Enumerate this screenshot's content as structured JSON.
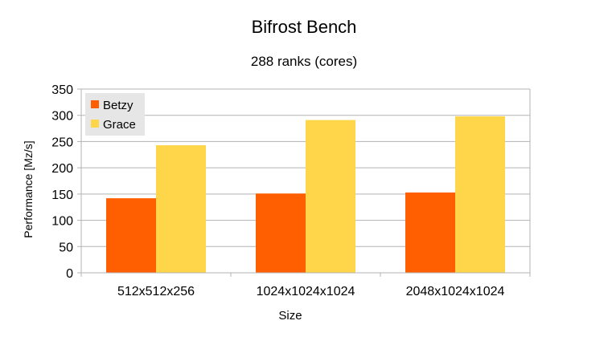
{
  "chart_data": {
    "type": "bar",
    "title": "Bifrost Bench",
    "subtitle": "288 ranks (cores)",
    "xlabel": "Size",
    "ylabel": "Performance [Mz/s]",
    "categories": [
      "512x512x256",
      "1024x1024x1024",
      "2048x1024x1024"
    ],
    "series": [
      {
        "name": "Betzy",
        "color": "#ff5f00",
        "values": [
          142,
          151,
          153
        ]
      },
      {
        "name": "Grace",
        "color": "#ffd54a",
        "values": [
          243,
          291,
          298
        ]
      }
    ],
    "ylim": [
      0,
      350
    ],
    "yticks": [
      0,
      50,
      100,
      150,
      200,
      250,
      300,
      350
    ],
    "grid": true,
    "legend_position": "top-left"
  }
}
